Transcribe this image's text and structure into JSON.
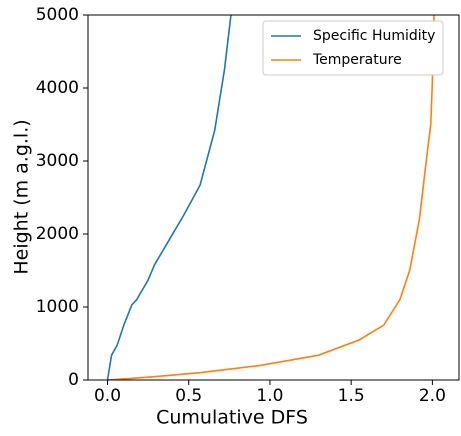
{
  "chart_data": {
    "type": "line",
    "xlabel": "Cumulative DFS",
    "ylabel": "Height (m a.g.l.)",
    "xlim": [
      -0.12,
      2.17
    ],
    "ylim": [
      0,
      5000
    ],
    "xticks": [
      {
        "value": 0,
        "label": "0.0"
      },
      0.5,
      {
        "value": 1,
        "label": "1.0"
      },
      1.5,
      {
        "value": 2,
        "label": "2.0"
      }
    ],
    "yticks": [
      0,
      1000,
      2000,
      3000,
      4000,
      5000
    ],
    "legend": "upper right",
    "series": [
      {
        "name": "Specific Humidity",
        "color": "#1f77b4",
        "x": [
          0,
          0.025,
          0.06,
          0.1,
          0.15,
          0.18,
          0.25,
          0.29,
          0.38,
          0.47,
          0.57,
          0.66,
          0.72,
          0.76
        ],
        "y": [
          0,
          340,
          480,
          750,
          1030,
          1100,
          1370,
          1580,
          1920,
          2260,
          2670,
          3420,
          4250,
          5000
        ]
      },
      {
        "name": "Temperature",
        "color": "#ff7f0e",
        "x": [
          0,
          0.26,
          0.57,
          0.94,
          1.3,
          1.55,
          1.7,
          1.8,
          1.86,
          1.92,
          1.97,
          1.99,
          2.0,
          2.01
        ],
        "y": [
          0,
          40,
          100,
          200,
          340,
          550,
          750,
          1100,
          1500,
          2200,
          3150,
          3500,
          4100,
          5000
        ]
      }
    ]
  }
}
